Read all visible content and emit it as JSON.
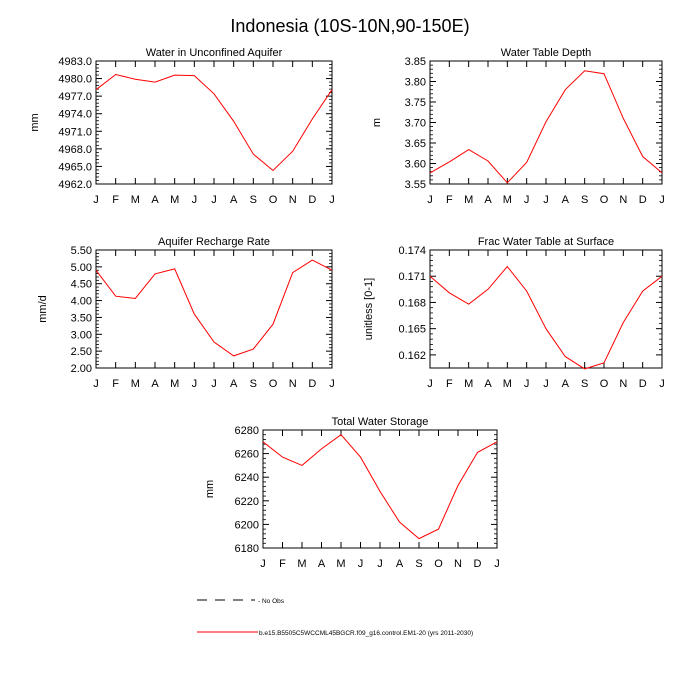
{
  "title": "Indonesia (10S-10N,90-150E)",
  "months": [
    "J",
    "F",
    "M",
    "A",
    "M",
    "J",
    "J",
    "A",
    "S",
    "O",
    "N",
    "D",
    "J"
  ],
  "chart_data": [
    {
      "type": "line",
      "title": "Water in Unconfined Aquifer",
      "ylabel": "mm",
      "ylim": [
        4962.0,
        4983.0
      ],
      "yticks": [
        4962.0,
        4965.0,
        4968.0,
        4971.0,
        4974.0,
        4977.0,
        4980.0,
        4983.0
      ],
      "ytick_labels": [
        "4962.0",
        "4965.0",
        "4968.0",
        "4971.0",
        "4974.0",
        "4977.0",
        "4980.0",
        "4983.0"
      ],
      "series": [
        {
          "name": "control",
          "color": "#ff0000",
          "values": [
            4978.1,
            4980.7,
            4979.9,
            4979.4,
            4980.6,
            4980.5,
            4977.4,
            4972.7,
            4967.1,
            4964.3,
            4967.6,
            4973.1,
            4978.1
          ]
        }
      ]
    },
    {
      "type": "line",
      "title": "Water Table Depth",
      "ylabel": "m",
      "ylim": [
        3.55,
        3.85
      ],
      "yticks": [
        3.55,
        3.6,
        3.65,
        3.7,
        3.75,
        3.8,
        3.85
      ],
      "ytick_labels": [
        "3.55",
        "3.60",
        "3.65",
        "3.70",
        "3.75",
        "3.80",
        "3.85"
      ],
      "series": [
        {
          "name": "control",
          "color": "#ff0000",
          "values": [
            3.577,
            3.604,
            3.634,
            3.606,
            3.553,
            3.603,
            3.702,
            3.78,
            3.826,
            3.819,
            3.71,
            3.617,
            3.577
          ]
        }
      ]
    },
    {
      "type": "line",
      "title": "Aquifer Recharge Rate",
      "ylabel": "mm/d",
      "ylim": [
        2.0,
        5.5
      ],
      "yticks": [
        2.0,
        2.5,
        3.0,
        3.5,
        4.0,
        4.5,
        5.0,
        5.5
      ],
      "ytick_labels": [
        "2.00",
        "2.50",
        "3.00",
        "3.50",
        "4.00",
        "4.50",
        "5.00",
        "5.50"
      ],
      "series": [
        {
          "name": "control",
          "color": "#ff0000",
          "values": [
            4.9,
            4.13,
            4.06,
            4.79,
            4.94,
            3.6,
            2.77,
            2.36,
            2.56,
            3.3,
            4.83,
            5.2,
            4.9
          ]
        }
      ]
    },
    {
      "type": "line",
      "title": "Frac Water Table at Surface",
      "ylabel": "unitless [0-1]",
      "ylim": [
        0.1605,
        0.174
      ],
      "yticks": [
        0.162,
        0.165,
        0.168,
        0.171,
        0.174
      ],
      "ytick_labels": [
        "0.162",
        "0.165",
        "0.168",
        "0.171",
        "0.174"
      ],
      "series": [
        {
          "name": "control",
          "color": "#ff0000",
          "values": [
            0.171,
            0.1691,
            0.1678,
            0.1695,
            0.1721,
            0.1693,
            0.165,
            0.1618,
            0.1604,
            0.1611,
            0.1657,
            0.1693,
            0.171
          ]
        }
      ]
    },
    {
      "type": "line",
      "title": "Total Water Storage",
      "ylabel": "mm",
      "ylim": [
        6180,
        6280
      ],
      "yticks": [
        6180,
        6200,
        6220,
        6240,
        6260,
        6280
      ],
      "ytick_labels": [
        "6180",
        "6200",
        "6220",
        "6240",
        "6260",
        "6280"
      ],
      "series": [
        {
          "name": "control",
          "color": "#ff0000",
          "values": [
            6270,
            6257,
            6250,
            6264,
            6276,
            6257,
            6228,
            6202,
            6188,
            6196,
            6233,
            6261,
            6270
          ]
        }
      ]
    }
  ],
  "legend": [
    {
      "label": "No Obs",
      "style": "dashed",
      "color": "#000000"
    },
    {
      "label": "b.e15.B5505C5WCCML45BGCR.f09_g16.control.EM1-20 (yrs 2011-2030)",
      "style": "solid",
      "color": "#ff0000"
    }
  ]
}
